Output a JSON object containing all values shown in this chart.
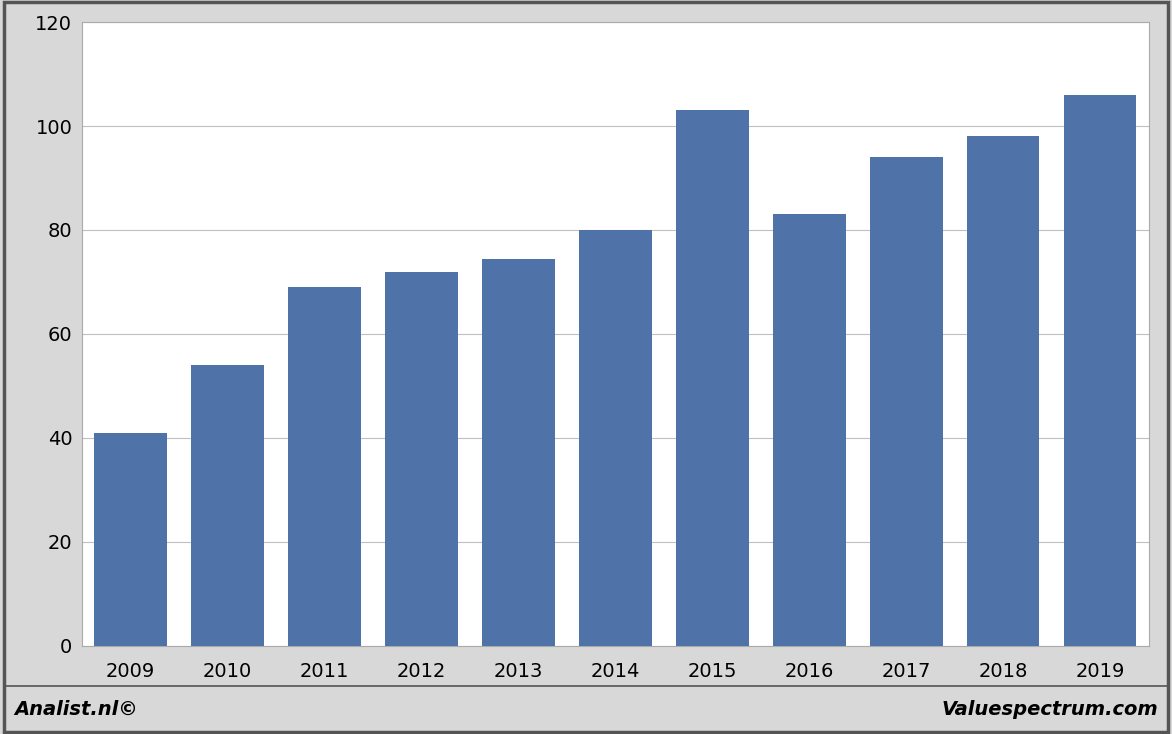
{
  "categories": [
    "2009",
    "2010",
    "2011",
    "2012",
    "2013",
    "2014",
    "2015",
    "2016",
    "2017",
    "2018",
    "2019"
  ],
  "values": [
    41,
    54,
    69,
    72,
    74.5,
    80,
    103,
    83,
    94,
    98,
    106
  ],
  "bar_color": "#4f72a8",
  "ylim": [
    0,
    120
  ],
  "yticks": [
    0,
    20,
    40,
    60,
    80,
    100,
    120
  ],
  "background_color": "#d8d8d8",
  "plot_background": "#ffffff",
  "grid_color": "#c0c0c0",
  "bottom_left_text": "Analist.nl©",
  "bottom_right_text": "Valuespectrum.com",
  "outer_border_color": "#555555",
  "bar_edge_color": "none",
  "bar_width": 0.75
}
